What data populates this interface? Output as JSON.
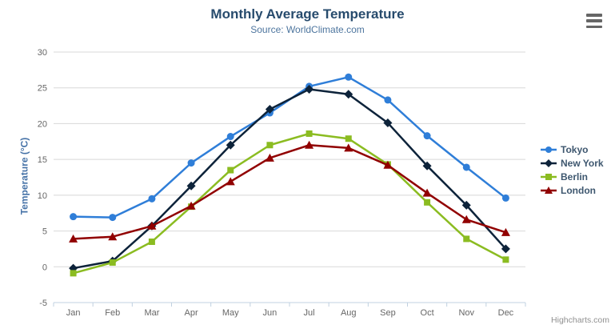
{
  "header": {
    "title": "Monthly Average Temperature",
    "subtitle": "Source: WorldClimate.com"
  },
  "export_menu": {
    "icon": "hamburger-menu-icon"
  },
  "credits": {
    "label": "Highcharts.com"
  },
  "colors": {
    "title_text": "#274b6d",
    "subtitle_text": "#4d759e",
    "axis_title_text": "#4572a7",
    "axis_label_text": "#666666",
    "grid_line": "#d8d8d8",
    "axis_line": "#c0d0e0",
    "legend_text": "#3e576f",
    "credits_text": "#909090"
  },
  "chart_data": {
    "type": "line",
    "title": "Monthly Average Temperature",
    "subtitle": "Source: WorldClimate.com",
    "categories": [
      "Jan",
      "Feb",
      "Mar",
      "Apr",
      "May",
      "Jun",
      "Jul",
      "Aug",
      "Sep",
      "Oct",
      "Nov",
      "Dec"
    ],
    "xlabel": "",
    "ylabel": "Temperature (°C)",
    "ylim": [
      -5,
      30
    ],
    "ytick_interval": 5,
    "ytick_labels": [
      "-5",
      "0",
      "5",
      "10",
      "15",
      "20",
      "25",
      "30"
    ],
    "grid": true,
    "legend_position": "right",
    "series": [
      {
        "name": "Tokyo",
        "color": "#2f7ed8",
        "marker": "circle",
        "values": [
          7.0,
          6.9,
          9.5,
          14.5,
          18.2,
          21.5,
          25.2,
          26.5,
          23.3,
          18.3,
          13.9,
          9.6
        ]
      },
      {
        "name": "New York",
        "color": "#0d233a",
        "marker": "diamond",
        "values": [
          -0.2,
          0.8,
          5.7,
          11.3,
          17.0,
          22.0,
          24.8,
          24.1,
          20.1,
          14.1,
          8.6,
          2.5
        ]
      },
      {
        "name": "Berlin",
        "color": "#8bbc21",
        "marker": "square",
        "values": [
          -0.9,
          0.6,
          3.5,
          8.4,
          13.5,
          17.0,
          18.6,
          17.9,
          14.3,
          9.0,
          3.9,
          1.0
        ]
      },
      {
        "name": "London",
        "color": "#910000",
        "marker": "triangle",
        "values": [
          3.9,
          4.2,
          5.7,
          8.5,
          11.9,
          15.2,
          17.0,
          16.6,
          14.2,
          10.3,
          6.6,
          4.8
        ]
      }
    ]
  }
}
